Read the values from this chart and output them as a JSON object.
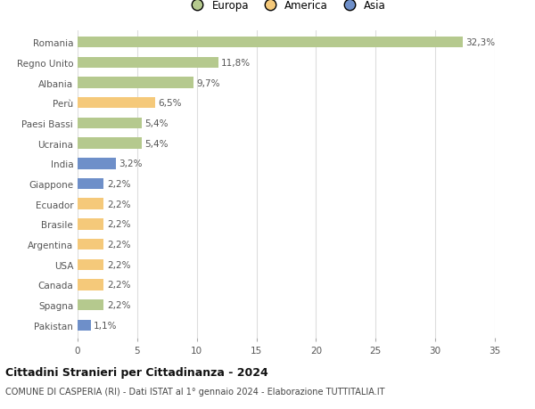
{
  "categories": [
    "Romania",
    "Regno Unito",
    "Albania",
    "Perù",
    "Paesi Bassi",
    "Ucraina",
    "India",
    "Giappone",
    "Ecuador",
    "Brasile",
    "Argentina",
    "USA",
    "Canada",
    "Spagna",
    "Pakistan"
  ],
  "values": [
    32.3,
    11.8,
    9.7,
    6.5,
    5.4,
    5.4,
    3.2,
    2.2,
    2.2,
    2.2,
    2.2,
    2.2,
    2.2,
    2.2,
    1.1
  ],
  "labels": [
    "32,3%",
    "11,8%",
    "9,7%",
    "6,5%",
    "5,4%",
    "5,4%",
    "3,2%",
    "2,2%",
    "2,2%",
    "2,2%",
    "2,2%",
    "2,2%",
    "2,2%",
    "2,2%",
    "1,1%"
  ],
  "continents": [
    "Europa",
    "Europa",
    "Europa",
    "America",
    "Europa",
    "Europa",
    "Asia",
    "Asia",
    "America",
    "America",
    "America",
    "America",
    "America",
    "Europa",
    "Asia"
  ],
  "colors": {
    "Europa": "#b5c98e",
    "America": "#f5c97a",
    "Asia": "#6e8fc9"
  },
  "legend": [
    {
      "label": "Europa",
      "color": "#b5c98e"
    },
    {
      "label": "America",
      "color": "#f5c97a"
    },
    {
      "label": "Asia",
      "color": "#6e8fc9"
    }
  ],
  "xlim": [
    0,
    35
  ],
  "xticks": [
    0,
    5,
    10,
    15,
    20,
    25,
    30,
    35
  ],
  "title": "Cittadini Stranieri per Cittadinanza - 2024",
  "subtitle": "COMUNE DI CASPERIA (RI) - Dati ISTAT al 1° gennaio 2024 - Elaborazione TUTTITALIA.IT",
  "background_color": "#ffffff",
  "plot_bg_color": "#ffffff",
  "grid_color": "#dddddd",
  "label_fontsize": 7.5,
  "tick_fontsize": 7.5,
  "bar_height": 0.55
}
